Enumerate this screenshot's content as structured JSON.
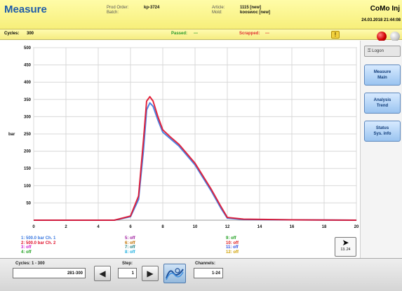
{
  "header": {
    "title": "Measure",
    "prod_order_label": "Prod Order:",
    "prod_order_value": "kp-3724",
    "batch_label": "Batch:",
    "article_label": "Article:",
    "article_value": "1115 [new]",
    "mold_label": "Mold:",
    "mold_value": "kooswoc [new]",
    "brand": "CoMo Inj",
    "datetime": "24.03.2018 21:44:08"
  },
  "status": {
    "cycles_label": "Cycles:",
    "cycles_value": "300",
    "passed_label": "Passed:",
    "passed_value": "---",
    "scrapped_label": "Scrapped:",
    "scrapped_value": "---",
    "warning_symbol": "!"
  },
  "sidebar": {
    "logon_label": "Logon",
    "buttons": [
      {
        "line1": "Measure",
        "line2": "Main"
      },
      {
        "line1": "Analysis",
        "line2": "Trend"
      },
      {
        "line1": "Status",
        "line2": "Sys. info"
      }
    ]
  },
  "legend": {
    "col1": [
      {
        "text": "1: 500.0 bar  Ch. 1",
        "color": "#3a78e0"
      },
      {
        "text": "2: 500.0 bar  Ch. 2",
        "color": "#e0102a"
      },
      {
        "text": "3: off",
        "color": "#d020d0"
      },
      {
        "text": "4: off",
        "color": "#20a020"
      }
    ],
    "col2": [
      {
        "text": "5: off",
        "color": "#a020a0"
      },
      {
        "text": "6: off",
        "color": "#c07000"
      },
      {
        "text": "7: off",
        "color": "#208080"
      },
      {
        "text": "8: off",
        "color": "#20b0e0"
      }
    ],
    "col3": [
      {
        "text": "9: off",
        "color": "#20a020"
      },
      {
        "text": "10: off",
        "color": "#e02020"
      },
      {
        "text": "11: off",
        "color": "#3050e0"
      },
      {
        "text": "12: off",
        "color": "#d0a000"
      }
    ],
    "next_label": "13..24"
  },
  "controls": {
    "cycles_label": "Cycles:   1 - 300",
    "cycles_value": "281-300",
    "step_label": "Step:",
    "step_value": "1",
    "channels_label": "Channels:",
    "channels_value": "1-24"
  },
  "chart_data": {
    "type": "line",
    "ylabel": "bar",
    "xlabel": "",
    "xlim": [
      0,
      20
    ],
    "ylim": [
      0,
      500
    ],
    "x_ticks": [
      0,
      2,
      4,
      6,
      8,
      10,
      12,
      14,
      16,
      18,
      20
    ],
    "y_ticks": [
      50,
      100,
      150,
      200,
      250,
      300,
      350,
      400,
      450,
      500
    ],
    "grid": true,
    "series": [
      {
        "name": "Ch. 1",
        "color": "#3a78e0",
        "x": [
          0,
          5,
          6,
          6.5,
          6.8,
          7.0,
          7.2,
          7.4,
          7.7,
          8.0,
          8.5,
          9.0,
          10.0,
          11.0,
          11.6,
          12.0,
          13,
          16,
          20
        ],
        "y": [
          0,
          0,
          10,
          60,
          200,
          320,
          340,
          330,
          290,
          255,
          235,
          215,
          160,
          85,
          35,
          6,
          2,
          1,
          0
        ]
      },
      {
        "name": "Ch. 2",
        "color": "#e0102a",
        "x": [
          0,
          5,
          6,
          6.5,
          6.8,
          7.0,
          7.2,
          7.4,
          7.7,
          8.0,
          8.5,
          9.0,
          10.0,
          11.0,
          11.6,
          12.0,
          13,
          16,
          20
        ],
        "y": [
          0,
          0,
          12,
          70,
          230,
          345,
          358,
          345,
          300,
          262,
          240,
          220,
          165,
          90,
          40,
          8,
          3,
          1,
          0
        ]
      }
    ]
  }
}
